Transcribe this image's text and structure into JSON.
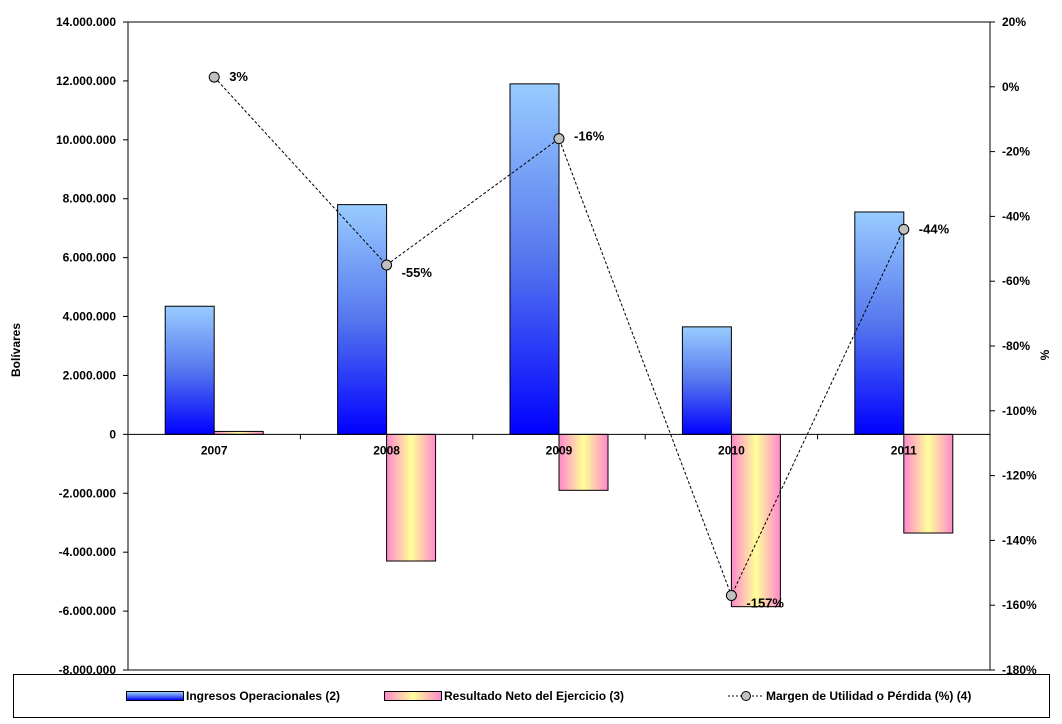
{
  "chart_data": {
    "type": "bar",
    "categories": [
      "2007",
      "2008",
      "2009",
      "2010",
      "2011"
    ],
    "series": [
      {
        "name": "Ingresos Operacionales (2)",
        "axis": "left",
        "type": "bar",
        "values": [
          4350000,
          7800000,
          11900000,
          3650000,
          7550000
        ]
      },
      {
        "name": "Resultado Neto del Ejercicio (3)",
        "axis": "left",
        "type": "bar",
        "values": [
          100000,
          -4300000,
          -1900000,
          -5850000,
          -3350000
        ]
      },
      {
        "name": "Margen de Utilidad o Pérdida (%) (4)",
        "axis": "right",
        "type": "line",
        "values": [
          3,
          -55,
          -16,
          -157,
          -44
        ],
        "labels": [
          "3%",
          "-55%",
          "-16%",
          "-157%",
          "-44%"
        ]
      }
    ],
    "ylabel": "Bolívares",
    "y2label": "%",
    "ylim": [
      -8000000,
      14000000
    ],
    "y2lim": [
      -180,
      20
    ],
    "yticks": [
      "14.000.000",
      "12.000.000",
      "10.000.000",
      "8.000.000",
      "6.000.000",
      "4.000.000",
      "2.000.000",
      "0",
      "-2.000.000",
      "-4.000.000",
      "-6.000.000",
      "-8.000.000"
    ],
    "y2ticks": [
      "20%",
      "0%",
      "-20%",
      "-40%",
      "-60%",
      "-80%",
      "-100%",
      "-120%",
      "-140%",
      "-160%",
      "-180%"
    ],
    "legend_position": "bottom",
    "colors": {
      "bar1_top": "#99ccff",
      "bar1_bottom": "#0000ff",
      "bar2_edge": "#ff88cc",
      "bar2_center": "#ffff99",
      "line": "#000000",
      "marker": "#c0c0c0"
    }
  }
}
